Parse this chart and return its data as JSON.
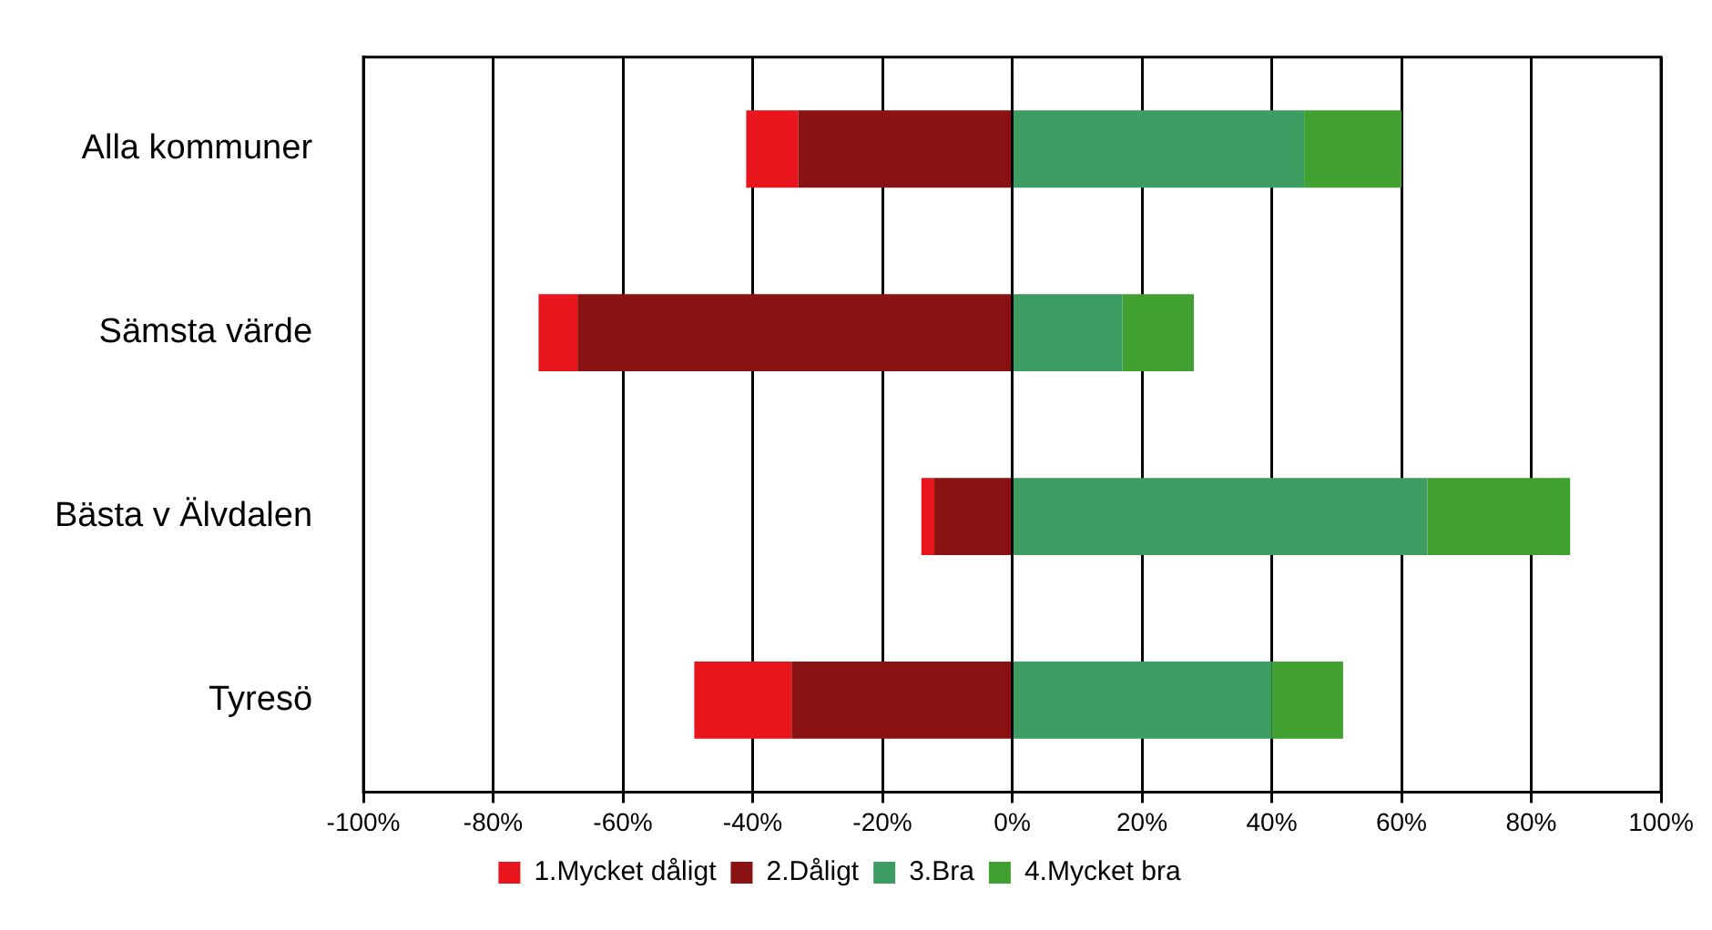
{
  "chart_data": {
    "type": "bar",
    "orientation": "horizontal",
    "stacked": true,
    "categories": [
      "Alla kommuner",
      "Sämsta värde",
      "Bästa v Älvdalen",
      "Tyresö"
    ],
    "series": [
      {
        "name": "2.Dåligt",
        "color": "#8b1212",
        "values": [
          -33,
          -67,
          -12,
          -34
        ]
      },
      {
        "name": "1.Mycket dåligt",
        "color": "#e8161c",
        "values": [
          -8,
          -6,
          -2,
          -15
        ]
      },
      {
        "name": "3.Bra",
        "color": "#3c9c62",
        "values": [
          45,
          17,
          64,
          40
        ]
      },
      {
        "name": "4.Mycket bra",
        "color": "#40a030",
        "values": [
          15,
          11,
          22,
          11
        ]
      }
    ],
    "xlim": [
      -100,
      100
    ],
    "xticks": [
      {
        "value": -100,
        "label": "-100%"
      },
      {
        "value": -80,
        "label": "-80%"
      },
      {
        "value": -60,
        "label": "-60%"
      },
      {
        "value": -40,
        "label": "-40%"
      },
      {
        "value": -20,
        "label": "-20%"
      },
      {
        "value": 0,
        "label": "0%"
      },
      {
        "value": 20,
        "label": "20%"
      },
      {
        "value": 40,
        "label": "40%"
      },
      {
        "value": 60,
        "label": "60%"
      },
      {
        "value": 80,
        "label": "80%"
      },
      {
        "value": 100,
        "label": "100%"
      }
    ],
    "grid": "x",
    "legend": "bottom"
  }
}
